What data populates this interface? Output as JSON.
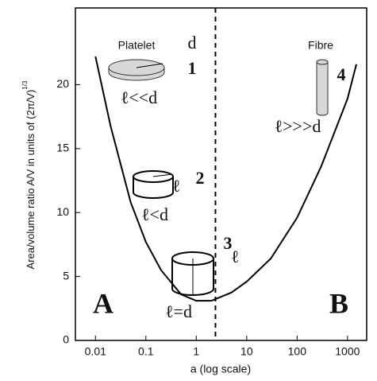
{
  "chart_data": {
    "type": "line",
    "ylabel": {
      "text": "Area/volume ratio A/V in units of ",
      "fraction": "(2π/V)",
      "exponent": "1/3"
    },
    "xlabel": "a (log scale)",
    "xscale": "log",
    "xlim": [
      0.004,
      2400
    ],
    "ylim": [
      0,
      26
    ],
    "xticks": [
      0.01,
      0.1,
      1,
      10,
      100,
      1000
    ],
    "yticks": [
      0,
      5,
      10,
      15,
      20
    ],
    "grid": false,
    "series": [
      {
        "color": "#000000",
        "x": [
          0.01,
          0.02,
          0.05,
          0.1,
          0.2,
          0.5,
          1,
          2,
          5,
          10,
          30,
          100,
          300,
          1000,
          1500
        ],
        "values": [
          22.2,
          16.75,
          10.8,
          7.7,
          5.5,
          3.6,
          3.1,
          3.1,
          3.75,
          4.6,
          6.4,
          9.6,
          13.6,
          18.9,
          21.6
        ]
      }
    ],
    "divider_x": 2.4,
    "annotations": [
      "Platelet",
      "d",
      "1",
      "ℓ<<d",
      "2",
      "ℓ",
      "ℓ<d",
      "3",
      "ℓ",
      "ℓ=d",
      "Fibre",
      "4",
      "ℓ>>>d",
      "A",
      "B"
    ]
  }
}
